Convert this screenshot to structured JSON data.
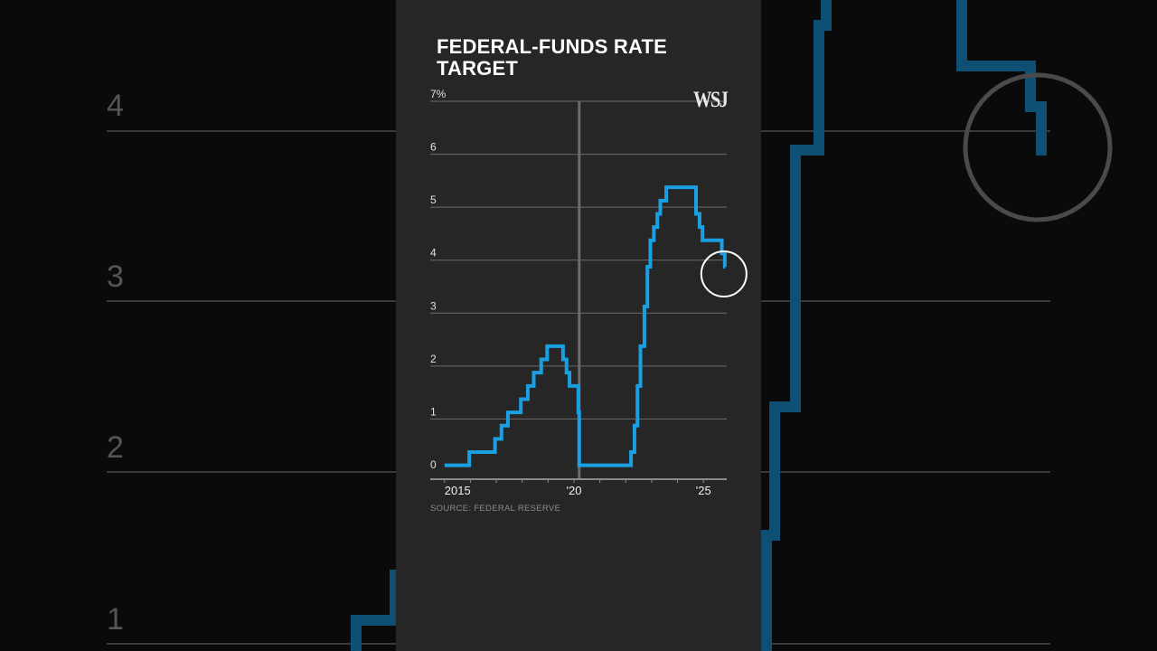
{
  "background": {
    "labels": [
      "4",
      "3",
      "2",
      "1"
    ]
  },
  "chart_data": {
    "type": "line",
    "style": "step",
    "title": "FEDERAL-FUNDS RATE TARGET",
    "source": "SOURCE: FEDERAL RESERVE",
    "logo": "WSJ",
    "xlim": [
      2014.45,
      2025.9
    ],
    "ylim": [
      0,
      7
    ],
    "yticks": [
      0,
      1,
      2,
      3,
      4,
      5,
      6,
      7
    ],
    "ytick_labels": [
      "0",
      "1",
      "2",
      "3",
      "4",
      "5",
      "6",
      "7%"
    ],
    "xticks": [
      2015,
      2016,
      2017,
      2018,
      2019,
      2020,
      2021,
      2022,
      2023,
      2024,
      2025
    ],
    "xtick_labels": [
      {
        "year": 2015,
        "label": "2015"
      },
      {
        "year": 2020,
        "label": "'20"
      },
      {
        "year": 2025,
        "label": "'25"
      }
    ],
    "grid": true,
    "highlight_line_date": "2020-03-15",
    "annotation_circle_date": "2025-10-29",
    "colors": {
      "line": "#1a9fe3",
      "background": "#262626",
      "grid": "#6a6a6a",
      "highlight_line": "#6b6b6b",
      "circle": "#ffffff"
    },
    "steps": [
      {
        "date": "2015-01-01",
        "value": 0.125
      },
      {
        "date": "2015-12-16",
        "value": 0.375
      },
      {
        "date": "2016-12-14",
        "value": 0.625
      },
      {
        "date": "2017-03-15",
        "value": 0.875
      },
      {
        "date": "2017-06-14",
        "value": 1.125
      },
      {
        "date": "2017-12-13",
        "value": 1.375
      },
      {
        "date": "2018-03-21",
        "value": 1.625
      },
      {
        "date": "2018-06-13",
        "value": 1.875
      },
      {
        "date": "2018-09-26",
        "value": 2.125
      },
      {
        "date": "2018-12-19",
        "value": 2.375
      },
      {
        "date": "2019-07-31",
        "value": 2.125
      },
      {
        "date": "2019-09-18",
        "value": 1.875
      },
      {
        "date": "2019-10-30",
        "value": 1.625
      },
      {
        "date": "2020-03-03",
        "value": 1.125
      },
      {
        "date": "2020-03-15",
        "value": 0.125
      },
      {
        "date": "2022-03-16",
        "value": 0.375
      },
      {
        "date": "2022-05-04",
        "value": 0.875
      },
      {
        "date": "2022-06-15",
        "value": 1.625
      },
      {
        "date": "2022-07-27",
        "value": 2.375
      },
      {
        "date": "2022-09-21",
        "value": 3.125
      },
      {
        "date": "2022-11-02",
        "value": 3.875
      },
      {
        "date": "2022-12-14",
        "value": 4.375
      },
      {
        "date": "2023-02-01",
        "value": 4.625
      },
      {
        "date": "2023-03-22",
        "value": 4.875
      },
      {
        "date": "2023-05-03",
        "value": 5.125
      },
      {
        "date": "2023-07-26",
        "value": 5.375
      },
      {
        "date": "2024-09-18",
        "value": 4.875
      },
      {
        "date": "2024-11-07",
        "value": 4.625
      },
      {
        "date": "2024-12-18",
        "value": 4.375
      },
      {
        "date": "2025-09-17",
        "value": 4.125
      },
      {
        "date": "2025-10-29",
        "value": 3.875
      }
    ],
    "end_date": "2025-11-05"
  }
}
